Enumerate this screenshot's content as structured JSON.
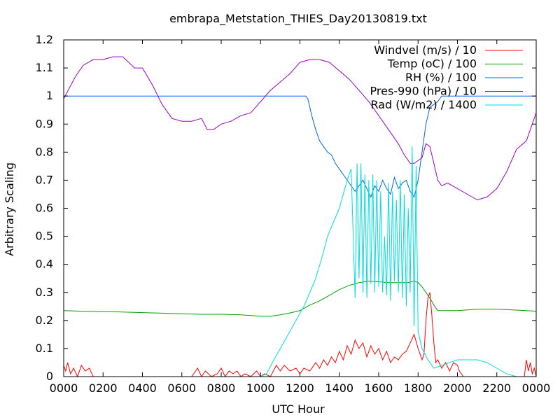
{
  "chart_data": {
    "type": "line",
    "title": "embrapa_Metstation_THIES_Day20130819.txt",
    "xlabel": "UTC Hour",
    "ylabel": "Arbitrary Scaling",
    "xlim": [
      0,
      24
    ],
    "ylim": [
      0,
      1.2
    ],
    "x_ticks": [
      "0000",
      "0200",
      "0400",
      "0600",
      "0800",
      "1000",
      "1200",
      "1400",
      "1600",
      "1800",
      "2000",
      "2200",
      "0000"
    ],
    "y_ticks": [
      "0",
      "0.1",
      "0.2",
      "0.3",
      "0.4",
      "0.5",
      "0.6",
      "0.7",
      "0.8",
      "0.9",
      "1",
      "1.1",
      "1.2"
    ],
    "grid": false,
    "legend_position": "top-right",
    "series": [
      {
        "name": "Windvel (m/s) / 10",
        "color": "#ff0000",
        "x": [
          0,
          0.1,
          0.2,
          0.35,
          0.5,
          0.7,
          0.9,
          1.1,
          1.3,
          1.5,
          1.8,
          2.5,
          3.5,
          4.5,
          5.5,
          6.5,
          6.8,
          7.0,
          7.2,
          7.5,
          7.8,
          8.0,
          8.2,
          8.4,
          8.6,
          8.8,
          9.0,
          9.2,
          9.5,
          9.8,
          10.0,
          10.2,
          10.5,
          10.8,
          11.0,
          11.2,
          11.5,
          11.8,
          12.0,
          12.2,
          12.5,
          12.8,
          13.0,
          13.2,
          13.4,
          13.6,
          13.8,
          14.0,
          14.2,
          14.4,
          14.6,
          14.8,
          15.0,
          15.2,
          15.4,
          15.6,
          15.8,
          16.0,
          16.2,
          16.4,
          16.6,
          16.8,
          17.0,
          17.2,
          17.4,
          17.6,
          17.8,
          18.0,
          18.2,
          18.3,
          18.4,
          18.5,
          18.6,
          18.7,
          18.8,
          18.9,
          19.0,
          19.2,
          19.4,
          19.6,
          19.8,
          20.0,
          20.1,
          20.3,
          21.0,
          22.0,
          23.0,
          23.4,
          23.5,
          23.6,
          23.7,
          23.8,
          23.9,
          24.0
        ],
        "values": [
          0.04,
          0.02,
          0.05,
          0.01,
          0.03,
          0.0,
          0.04,
          0.02,
          0.03,
          0.0,
          0.0,
          0.0,
          0.0,
          0.0,
          0.0,
          0.0,
          0.03,
          0.0,
          0.02,
          0.0,
          0.01,
          0.03,
          0.0,
          0.02,
          0.01,
          0.02,
          0.0,
          0.01,
          0.0,
          0.02,
          0.0,
          0.01,
          0.0,
          0.04,
          0.02,
          0.04,
          0.02,
          0.03,
          0.01,
          0.03,
          0.02,
          0.05,
          0.03,
          0.06,
          0.04,
          0.07,
          0.05,
          0.09,
          0.06,
          0.11,
          0.08,
          0.13,
          0.1,
          0.12,
          0.07,
          0.11,
          0.08,
          0.1,
          0.06,
          0.09,
          0.05,
          0.07,
          0.06,
          0.08,
          0.09,
          0.12,
          0.15,
          0.1,
          0.06,
          0.08,
          0.2,
          0.28,
          0.3,
          0.22,
          0.12,
          0.05,
          0.06,
          0.03,
          0.05,
          0.02,
          0.05,
          0.04,
          0.02,
          0.0,
          0.0,
          0.0,
          0.0,
          0.0,
          0.06,
          0.02,
          0.05,
          0.01,
          0.03,
          0.0
        ]
      },
      {
        "name": "Temp (oC) / 100",
        "color": "#00a000",
        "x": [
          0,
          1,
          2,
          3,
          4,
          5,
          6,
          7,
          8,
          9,
          10,
          10.5,
          11,
          11.5,
          12,
          12.5,
          13,
          13.5,
          14,
          14.5,
          15,
          15.5,
          16,
          16.5,
          17,
          17.5,
          17.8,
          18.0,
          18.2,
          18.4,
          18.6,
          18.8,
          19,
          20,
          21,
          22,
          23,
          24
        ],
        "values": [
          0.235,
          0.233,
          0.232,
          0.23,
          0.228,
          0.226,
          0.224,
          0.222,
          0.222,
          0.22,
          0.215,
          0.215,
          0.22,
          0.227,
          0.235,
          0.255,
          0.27,
          0.29,
          0.31,
          0.325,
          0.335,
          0.34,
          0.338,
          0.335,
          0.335,
          0.335,
          0.34,
          0.335,
          0.32,
          0.3,
          0.28,
          0.255,
          0.235,
          0.235,
          0.24,
          0.24,
          0.237,
          0.233
        ]
      },
      {
        "name": "RH (%) / 100",
        "color": "#0066dd",
        "x": [
          0,
          2,
          4,
          6,
          8,
          10,
          12.3,
          12.4,
          12.6,
          12.8,
          13.0,
          13.2,
          13.4,
          13.6,
          13.8,
          14.0,
          14.2,
          14.4,
          14.6,
          14.8,
          15.0,
          15.2,
          15.4,
          15.6,
          15.8,
          16.0,
          16.2,
          16.4,
          16.6,
          16.8,
          17.0,
          17.2,
          17.4,
          17.6,
          17.8,
          18.0,
          18.2,
          18.4,
          18.6,
          18.8,
          19.0,
          19.2,
          19.5,
          20,
          22,
          24
        ],
        "values": [
          1.0,
          1.0,
          1.0,
          1.0,
          1.0,
          1.0,
          1.0,
          0.99,
          0.93,
          0.88,
          0.84,
          0.82,
          0.8,
          0.79,
          0.76,
          0.74,
          0.72,
          0.7,
          0.68,
          0.66,
          0.68,
          0.7,
          0.67,
          0.64,
          0.68,
          0.66,
          0.7,
          0.67,
          0.65,
          0.71,
          0.67,
          0.69,
          0.7,
          0.66,
          0.64,
          0.7,
          0.8,
          0.9,
          0.96,
          0.97,
          0.98,
          1.0,
          1.0,
          1.0,
          1.0,
          1.0
        ]
      },
      {
        "name": "Pres-990 (hPa) / 10",
        "color": "#9900cc",
        "x": [
          0,
          0.3,
          0.6,
          1.0,
          1.5,
          2.0,
          2.5,
          3.0,
          3.3,
          3.6,
          4.0,
          4.5,
          5.0,
          5.5,
          6.0,
          6.5,
          7.0,
          7.3,
          7.6,
          8.0,
          8.5,
          9.0,
          9.5,
          10.0,
          10.5,
          11.0,
          11.5,
          12.0,
          12.5,
          13.0,
          13.5,
          14.0,
          14.5,
          15.0,
          15.5,
          16.0,
          16.5,
          17.0,
          17.3,
          17.6,
          17.8,
          18.0,
          18.2,
          18.4,
          18.6,
          18.8,
          19.0,
          19.2,
          19.5,
          20.0,
          20.5,
          21.0,
          21.5,
          22.0,
          22.5,
          23.0,
          23.5,
          24.0
        ],
        "values": [
          0.99,
          1.03,
          1.07,
          1.11,
          1.13,
          1.13,
          1.14,
          1.14,
          1.12,
          1.1,
          1.1,
          1.04,
          0.97,
          0.92,
          0.91,
          0.91,
          0.92,
          0.88,
          0.88,
          0.9,
          0.91,
          0.93,
          0.94,
          0.98,
          1.02,
          1.05,
          1.08,
          1.12,
          1.13,
          1.13,
          1.12,
          1.09,
          1.06,
          1.02,
          0.98,
          0.93,
          0.88,
          0.83,
          0.79,
          0.76,
          0.76,
          0.77,
          0.78,
          0.83,
          0.82,
          0.76,
          0.7,
          0.68,
          0.69,
          0.67,
          0.65,
          0.63,
          0.64,
          0.67,
          0.73,
          0.81,
          0.84,
          0.94
        ]
      },
      {
        "name": "Rad (W/m2) / 1400",
        "color": "#00dddd",
        "x": [
          0,
          2,
          4,
          6,
          8,
          10,
          10.3,
          10.6,
          11.0,
          11.4,
          11.8,
          12.2,
          12.5,
          12.8,
          13.1,
          13.4,
          13.7,
          14.0,
          14.2,
          14.4,
          14.6,
          14.8,
          14.9,
          15.0,
          15.1,
          15.2,
          15.3,
          15.4,
          15.5,
          15.6,
          15.7,
          15.8,
          15.9,
          16.0,
          16.1,
          16.2,
          16.3,
          16.4,
          16.5,
          16.6,
          16.7,
          16.8,
          16.9,
          17.0,
          17.1,
          17.2,
          17.3,
          17.4,
          17.5,
          17.6,
          17.7,
          17.8,
          17.9,
          18.0,
          18.2,
          18.5,
          18.8,
          19.2,
          19.6,
          20.0,
          20.5,
          21.0,
          21.5,
          22.0,
          22.5,
          23.0,
          24.0
        ],
        "values": [
          0.0,
          0.0,
          0.0,
          0.0,
          0.0,
          0.0,
          0.01,
          0.05,
          0.1,
          0.15,
          0.2,
          0.25,
          0.3,
          0.35,
          0.42,
          0.5,
          0.55,
          0.6,
          0.65,
          0.7,
          0.74,
          0.28,
          0.76,
          0.35,
          0.76,
          0.3,
          0.72,
          0.28,
          0.7,
          0.33,
          0.72,
          0.3,
          0.7,
          0.32,
          0.66,
          0.3,
          0.5,
          0.29,
          0.69,
          0.27,
          0.66,
          0.34,
          0.63,
          0.3,
          0.7,
          0.28,
          0.65,
          0.25,
          0.6,
          0.3,
          0.82,
          0.18,
          0.75,
          0.16,
          0.1,
          0.06,
          0.03,
          0.04,
          0.05,
          0.06,
          0.06,
          0.06,
          0.05,
          0.03,
          0.01,
          0.0,
          0.0
        ]
      }
    ]
  }
}
